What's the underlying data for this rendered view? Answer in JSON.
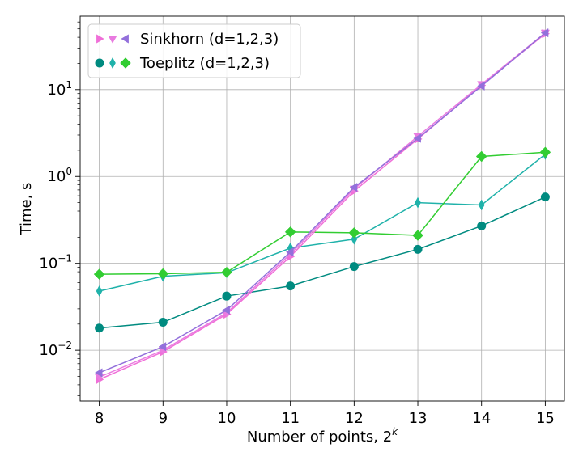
{
  "chart_data": {
    "type": "line",
    "title": "",
    "xlabel": "Number of points, 2",
    "xlabel_superscript": "k",
    "ylabel": "Time, s",
    "y_scale": "log",
    "x": [
      8,
      9,
      10,
      11,
      12,
      13,
      14,
      15
    ],
    "xlim": [
      7.7,
      15.3
    ],
    "ylim": [
      0.0026,
      70
    ],
    "x_ticks": [
      "8",
      "9",
      "10",
      "11",
      "12",
      "13",
      "14",
      "15"
    ],
    "y_ticks": [
      {
        "value": 0.01,
        "base": "10",
        "exp": "−2"
      },
      {
        "value": 0.1,
        "base": "10",
        "exp": "−1"
      },
      {
        "value": 1,
        "base": "10",
        "exp": "0"
      },
      {
        "value": 10,
        "base": "10",
        "exp": "1"
      }
    ],
    "grid": true,
    "legend_position": "top-left",
    "legend": [
      {
        "label": "Sinkhorn (d=1,2,3)",
        "markers": [
          "triangle-right",
          "triangle-down",
          "triangle-left"
        ],
        "colors": [
          "#f06fd8",
          "#e97be0",
          "#9370db"
        ]
      },
      {
        "label": "Toeplitz (d=1,2,3)",
        "markers": [
          "circle",
          "thin-diamond",
          "diamond"
        ],
        "colors": [
          "#008b80",
          "#20b2aa",
          "#32cd32"
        ]
      }
    ],
    "series": [
      {
        "family": "Sinkhorn",
        "d": 1,
        "color": "#f06fd8",
        "marker": "triangle-right",
        "values": [
          0.0046,
          0.0096,
          0.026,
          0.12,
          0.68,
          2.7,
          11.2,
          44
        ]
      },
      {
        "family": "Sinkhorn",
        "d": 2,
        "color": "#e97be0",
        "marker": "triangle-down",
        "values": [
          0.0049,
          0.01,
          0.027,
          0.128,
          0.72,
          2.9,
          11.5,
          45
        ]
      },
      {
        "family": "Sinkhorn",
        "d": 3,
        "color": "#9370db",
        "marker": "triangle-left",
        "values": [
          0.0055,
          0.011,
          0.029,
          0.135,
          0.75,
          2.75,
          11.0,
          45
        ]
      },
      {
        "family": "Toeplitz",
        "d": 1,
        "color": "#008b80",
        "marker": "circle",
        "values": [
          0.018,
          0.021,
          0.042,
          0.055,
          0.092,
          0.145,
          0.27,
          0.58
        ]
      },
      {
        "family": "Toeplitz",
        "d": 2,
        "color": "#20b2aa",
        "marker": "thin-diamond",
        "values": [
          0.048,
          0.071,
          0.078,
          0.15,
          0.19,
          0.5,
          0.47,
          1.8
        ]
      },
      {
        "family": "Toeplitz",
        "d": 3,
        "color": "#32cd32",
        "marker": "diamond",
        "values": [
          0.075,
          0.076,
          0.079,
          0.23,
          0.225,
          0.21,
          1.7,
          1.9
        ]
      }
    ]
  }
}
